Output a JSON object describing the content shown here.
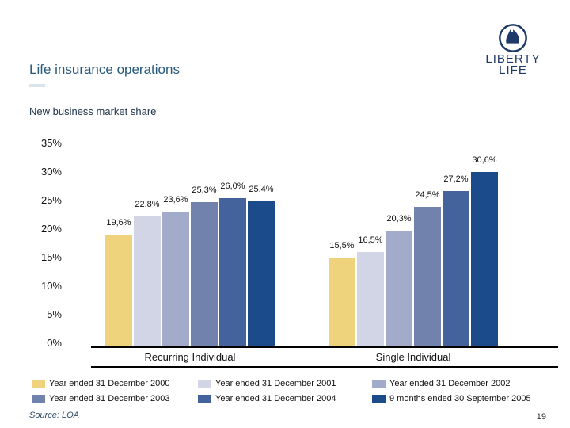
{
  "slide": {
    "title": "Life insurance operations",
    "subtitle": "New business market share",
    "source": "Source: LOA",
    "page_number": "19",
    "logo": {
      "line1": "LIBERTY",
      "line2": "LIFE"
    }
  },
  "colors": {
    "title_text": "#27597C",
    "subtitle_text": "#20354A",
    "logo_navy": "#1F3A68",
    "axis_line": "#000000",
    "bar_2000": "#EFD27C",
    "bar_2001": "#D1D5E5",
    "bar_2002": "#A2ABCA",
    "bar_2003": "#7183AC",
    "bar_2004": "#44639D",
    "bar_2005": "#1C4B8C"
  },
  "chart_data": {
    "type": "bar",
    "title": "New business market share",
    "xlabel": "",
    "ylabel": "",
    "ylim": [
      0,
      35
    ],
    "ytick_step": 5,
    "ytick_labels_top_to_bottom": [
      "35%",
      "30%",
      "25%",
      "20%",
      "15%",
      "10%",
      "5%",
      "0%"
    ],
    "grid": false,
    "legend_position": "bottom",
    "categories": [
      "Recurring Individual",
      "Single Individual"
    ],
    "series": [
      {
        "name": "Year ended 31 December 2000",
        "color": "#EFD27C",
        "values": [
          19.6,
          15.5
        ],
        "labels": [
          "19,6%",
          "15,5%"
        ]
      },
      {
        "name": "Year ended 31 December 2001",
        "color": "#D1D5E5",
        "values": [
          22.8,
          16.5
        ],
        "labels": [
          "22,8%",
          "16,5%"
        ]
      },
      {
        "name": "Year ended 31 December 2002",
        "color": "#A2ABCA",
        "values": [
          23.6,
          20.3
        ],
        "labels": [
          "23,6%",
          "20,3%"
        ]
      },
      {
        "name": "Year ended 31 December 2003",
        "color": "#7183AC",
        "values": [
          25.3,
          24.5
        ],
        "labels": [
          "25,3%",
          "24,5%"
        ]
      },
      {
        "name": "Year ended 31 December 2004",
        "color": "#44639D",
        "values": [
          26.0,
          27.2
        ],
        "labels": [
          "26,0%",
          "27,2%"
        ]
      },
      {
        "name": "9 months ended 30 September 2005",
        "color": "#1C4B8C",
        "values": [
          25.4,
          30.6
        ],
        "labels": [
          "25,4%",
          "30,6%"
        ]
      }
    ]
  }
}
